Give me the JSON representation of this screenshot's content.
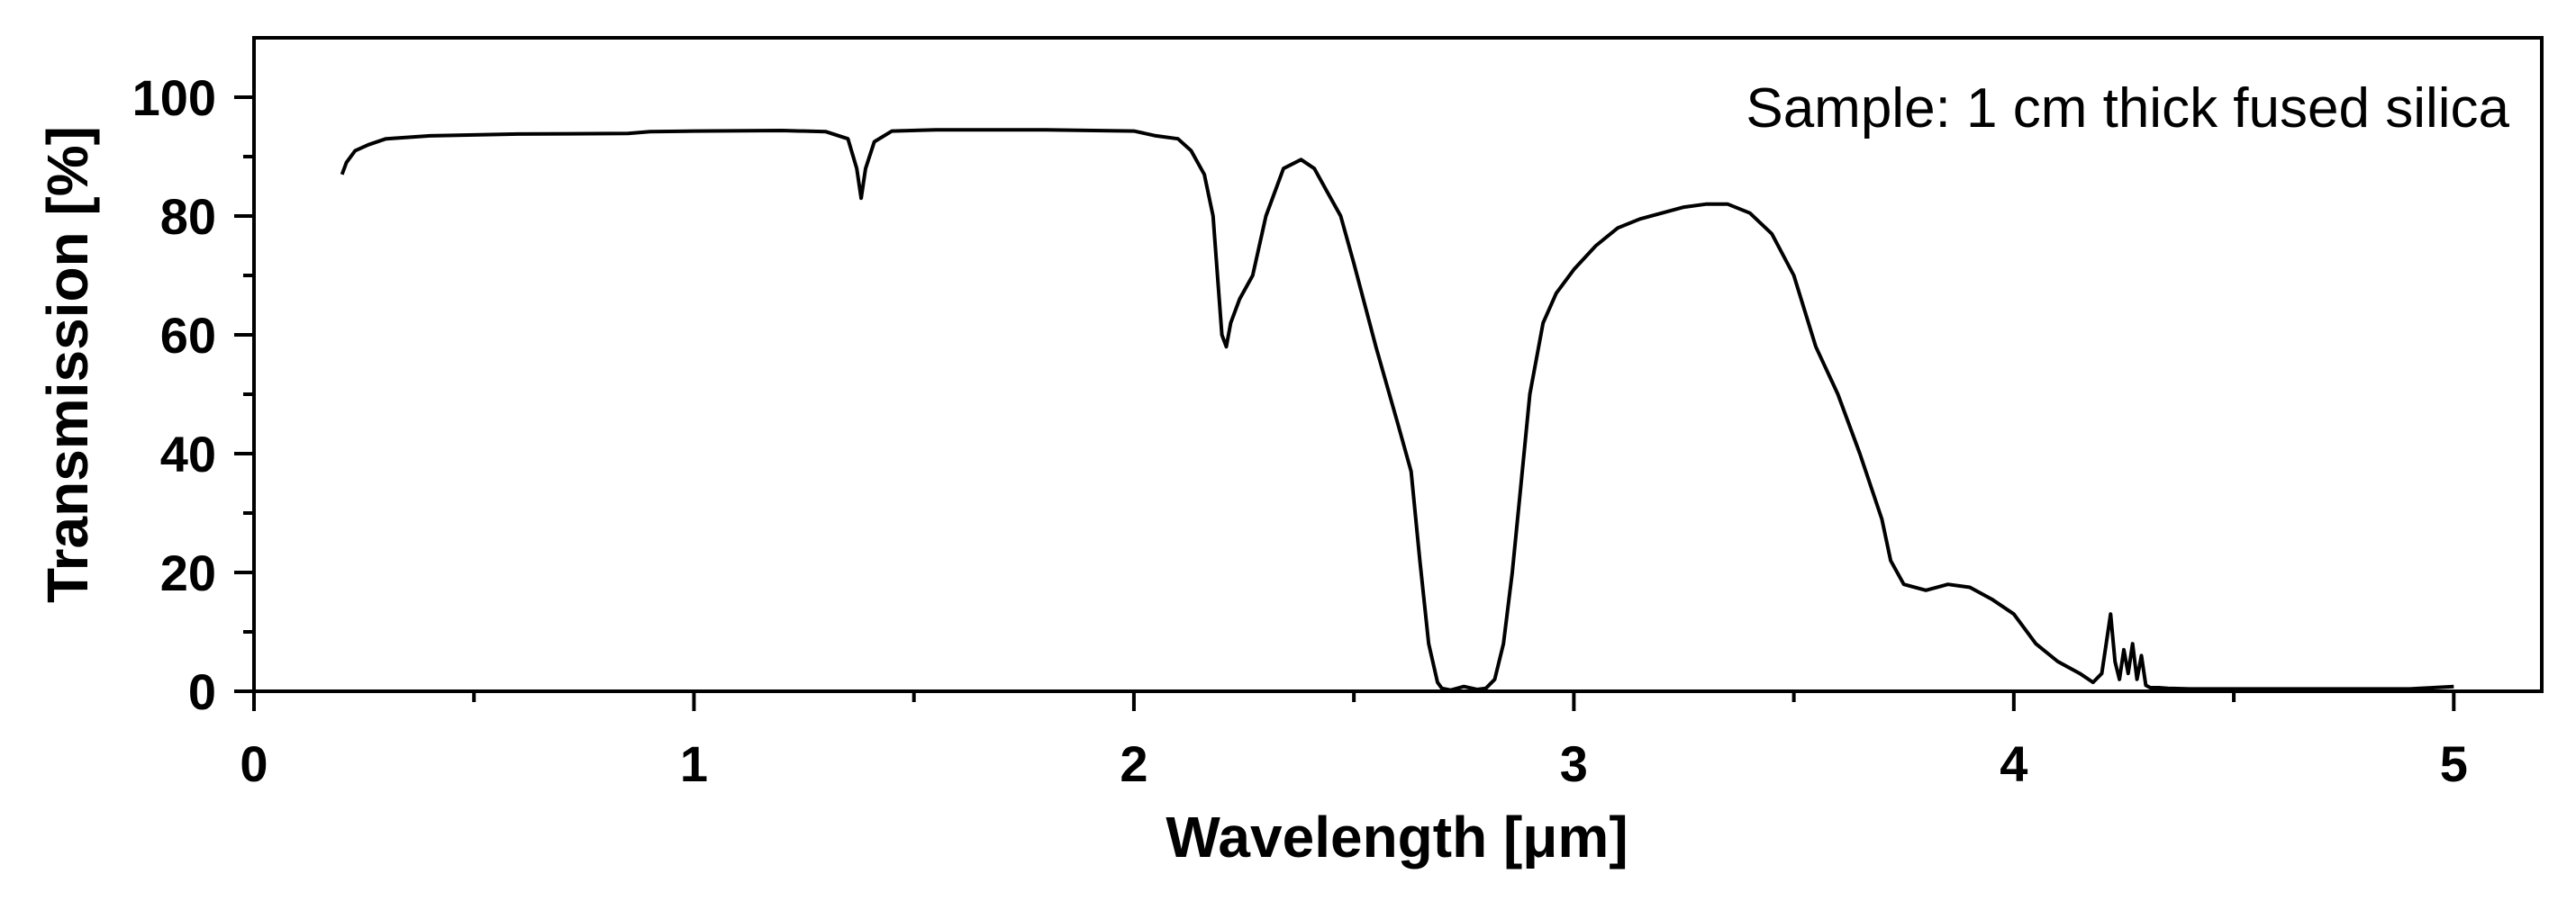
{
  "chart_data": {
    "type": "line",
    "title": "",
    "xlabel": "Wavelength [μm]",
    "ylabel": "Transmission [%]",
    "annotation": "Sample: 1 cm thick fused silica",
    "xlim": [
      0,
      5.2
    ],
    "ylim": [
      0,
      110
    ],
    "x_ticks": [
      0,
      1,
      2,
      3,
      4,
      5
    ],
    "x_tick_labels": [
      "0",
      "1",
      "2",
      "3",
      "4",
      "5"
    ],
    "y_ticks": [
      0,
      20,
      40,
      60,
      80,
      100
    ],
    "y_tick_labels": [
      "0",
      "20",
      "40",
      "60",
      "80",
      "100"
    ],
    "grid": false,
    "series": [
      {
        "name": "Transmission",
        "color": "#000000",
        "x": [
          0.2,
          0.21,
          0.23,
          0.26,
          0.3,
          0.4,
          0.6,
          0.85,
          0.9,
          1.0,
          1.2,
          1.3,
          1.35,
          1.37,
          1.38,
          1.39,
          1.41,
          1.45,
          1.55,
          1.8,
          2.0,
          2.05,
          2.1,
          2.13,
          2.16,
          2.18,
          2.19,
          2.2,
          2.21,
          2.22,
          2.24,
          2.27,
          2.3,
          2.34,
          2.38,
          2.41,
          2.44,
          2.47,
          2.5,
          2.55,
          2.6,
          2.63,
          2.65,
          2.67,
          2.69,
          2.7,
          2.72,
          2.75,
          2.78,
          2.8,
          2.82,
          2.84,
          2.86,
          2.88,
          2.9,
          2.93,
          2.96,
          3.0,
          3.05,
          3.1,
          3.15,
          3.2,
          3.25,
          3.3,
          3.35,
          3.4,
          3.45,
          3.5,
          3.55,
          3.6,
          3.65,
          3.7,
          3.72,
          3.75,
          3.8,
          3.85,
          3.9,
          3.95,
          4.0,
          4.05,
          4.1,
          4.15,
          4.18,
          4.2,
          4.21,
          4.22,
          4.23,
          4.24,
          4.25,
          4.26,
          4.27,
          4.28,
          4.29,
          4.3,
          4.31,
          4.33,
          4.35,
          4.4,
          4.5,
          4.7,
          4.9,
          5.0
        ],
        "values": [
          87,
          89,
          91,
          92,
          93,
          93.5,
          93.8,
          93.9,
          94.2,
          94.3,
          94.4,
          94.2,
          93,
          88,
          83,
          88,
          92.5,
          94.3,
          94.5,
          94.5,
          94.3,
          93.5,
          93,
          91,
          87,
          80,
          70,
          60,
          58,
          62,
          66,
          70,
          80,
          88,
          89.5,
          88,
          84,
          80,
          72,
          58,
          45,
          37,
          22,
          8,
          1.5,
          0.5,
          0.2,
          0.8,
          0.3,
          0.5,
          2,
          8,
          20,
          35,
          50,
          62,
          67,
          71,
          75,
          78,
          79.5,
          80.5,
          81.5,
          82,
          82,
          80.5,
          77,
          70,
          58,
          50,
          40,
          29,
          22,
          18,
          17,
          18,
          17.5,
          15.5,
          13,
          8,
          5,
          3,
          1.5,
          3,
          8,
          13,
          5,
          2,
          7,
          3,
          8,
          2,
          6,
          1,
          0.6,
          0.6,
          0.5,
          0.4,
          0.4,
          0.4,
          0.4,
          0.8
        ]
      }
    ]
  }
}
